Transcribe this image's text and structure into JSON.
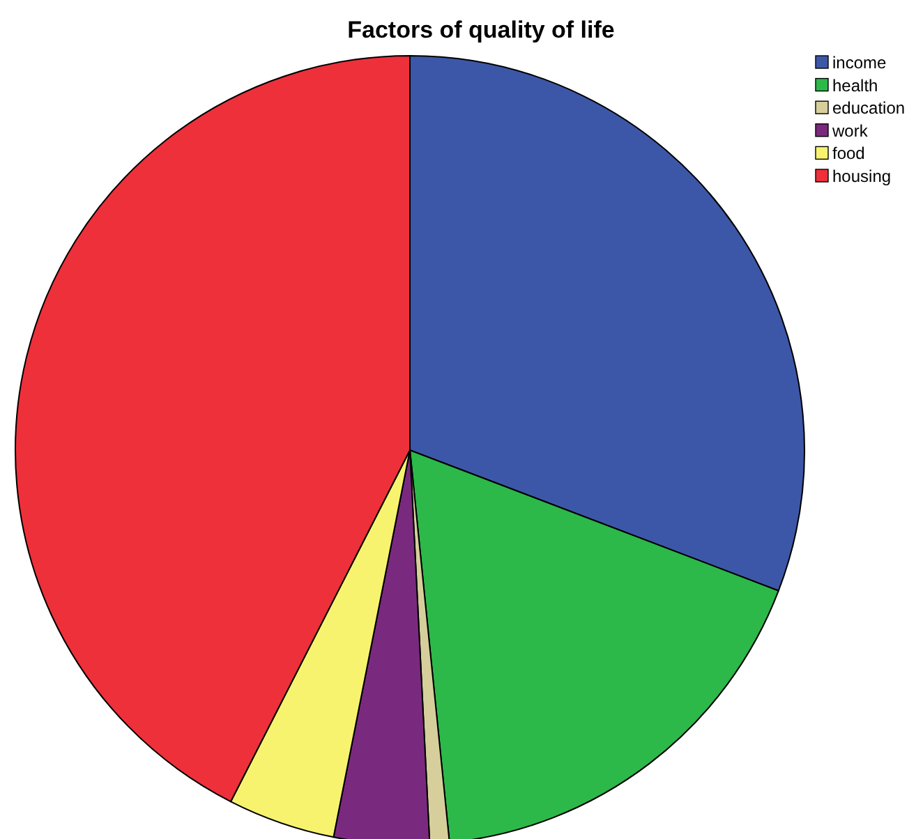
{
  "chart_data": {
    "type": "pie",
    "title": "Factors of quality of life",
    "categories": [
      "income",
      "health",
      "education",
      "work",
      "food",
      "housing"
    ],
    "values": [
      30.8,
      17.6,
      0.8,
      3.9,
      4.4,
      42.5
    ],
    "colors": [
      "#3d57a8",
      "#2db84a",
      "#d6cf9c",
      "#7a2a7e",
      "#f7f36e",
      "#ee303a"
    ],
    "legend": "top right"
  }
}
